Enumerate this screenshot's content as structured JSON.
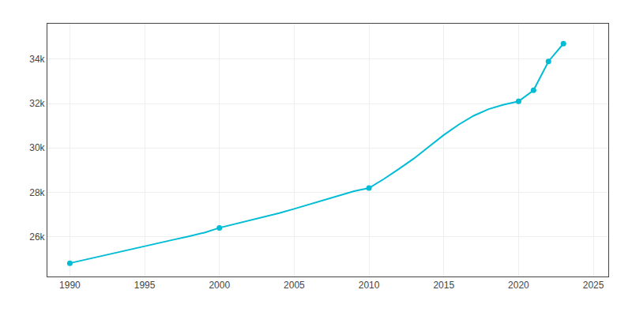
{
  "chart_data": {
    "type": "line",
    "x": [
      1990,
      1991,
      1992,
      1993,
      1994,
      1995,
      1996,
      1997,
      1998,
      1999,
      2000,
      2001,
      2002,
      2003,
      2004,
      2005,
      2006,
      2007,
      2008,
      2009,
      2010,
      2011,
      2012,
      2013,
      2014,
      2015,
      2016,
      2017,
      2018,
      2019,
      2020,
      2021,
      2022,
      2023
    ],
    "series": [
      {
        "type": "line",
        "color": "#00BCD4",
        "values": [
          24801,
          24950,
          25100,
          25250,
          25400,
          25550,
          25720,
          25870,
          26020,
          26180,
          26395,
          26560,
          26720,
          26890,
          27060,
          27250,
          27450,
          27660,
          27870,
          28050,
          28190,
          28600,
          29050,
          29520,
          30050,
          30580,
          31050,
          31450,
          31750,
          31950,
          32100,
          32600,
          33900,
          34700
        ]
      },
      {
        "type": "scatter",
        "marker": "circle",
        "color": "#00BCD4",
        "values": [
          24801,
          null,
          null,
          null,
          null,
          null,
          null,
          null,
          null,
          null,
          26395,
          null,
          null,
          null,
          null,
          null,
          null,
          null,
          null,
          null,
          28190,
          null,
          null,
          null,
          null,
          null,
          null,
          null,
          null,
          null,
          32100,
          32600,
          33900,
          34700
        ]
      }
    ],
    "xlim": [
      1988.5,
      2026
    ],
    "xticks": [
      1990,
      1995,
      2000,
      2005,
      2010,
      2015,
      2020,
      2025
    ],
    "ylim": [
      24200,
      35600
    ],
    "yticks": [
      {
        "value": 26000,
        "label": "26k"
      },
      {
        "value": 28000,
        "label": "28k"
      },
      {
        "value": 30000,
        "label": "30k"
      },
      {
        "value": 32000,
        "label": "32k"
      },
      {
        "value": 34000,
        "label": "34k"
      }
    ],
    "grid": true
  }
}
